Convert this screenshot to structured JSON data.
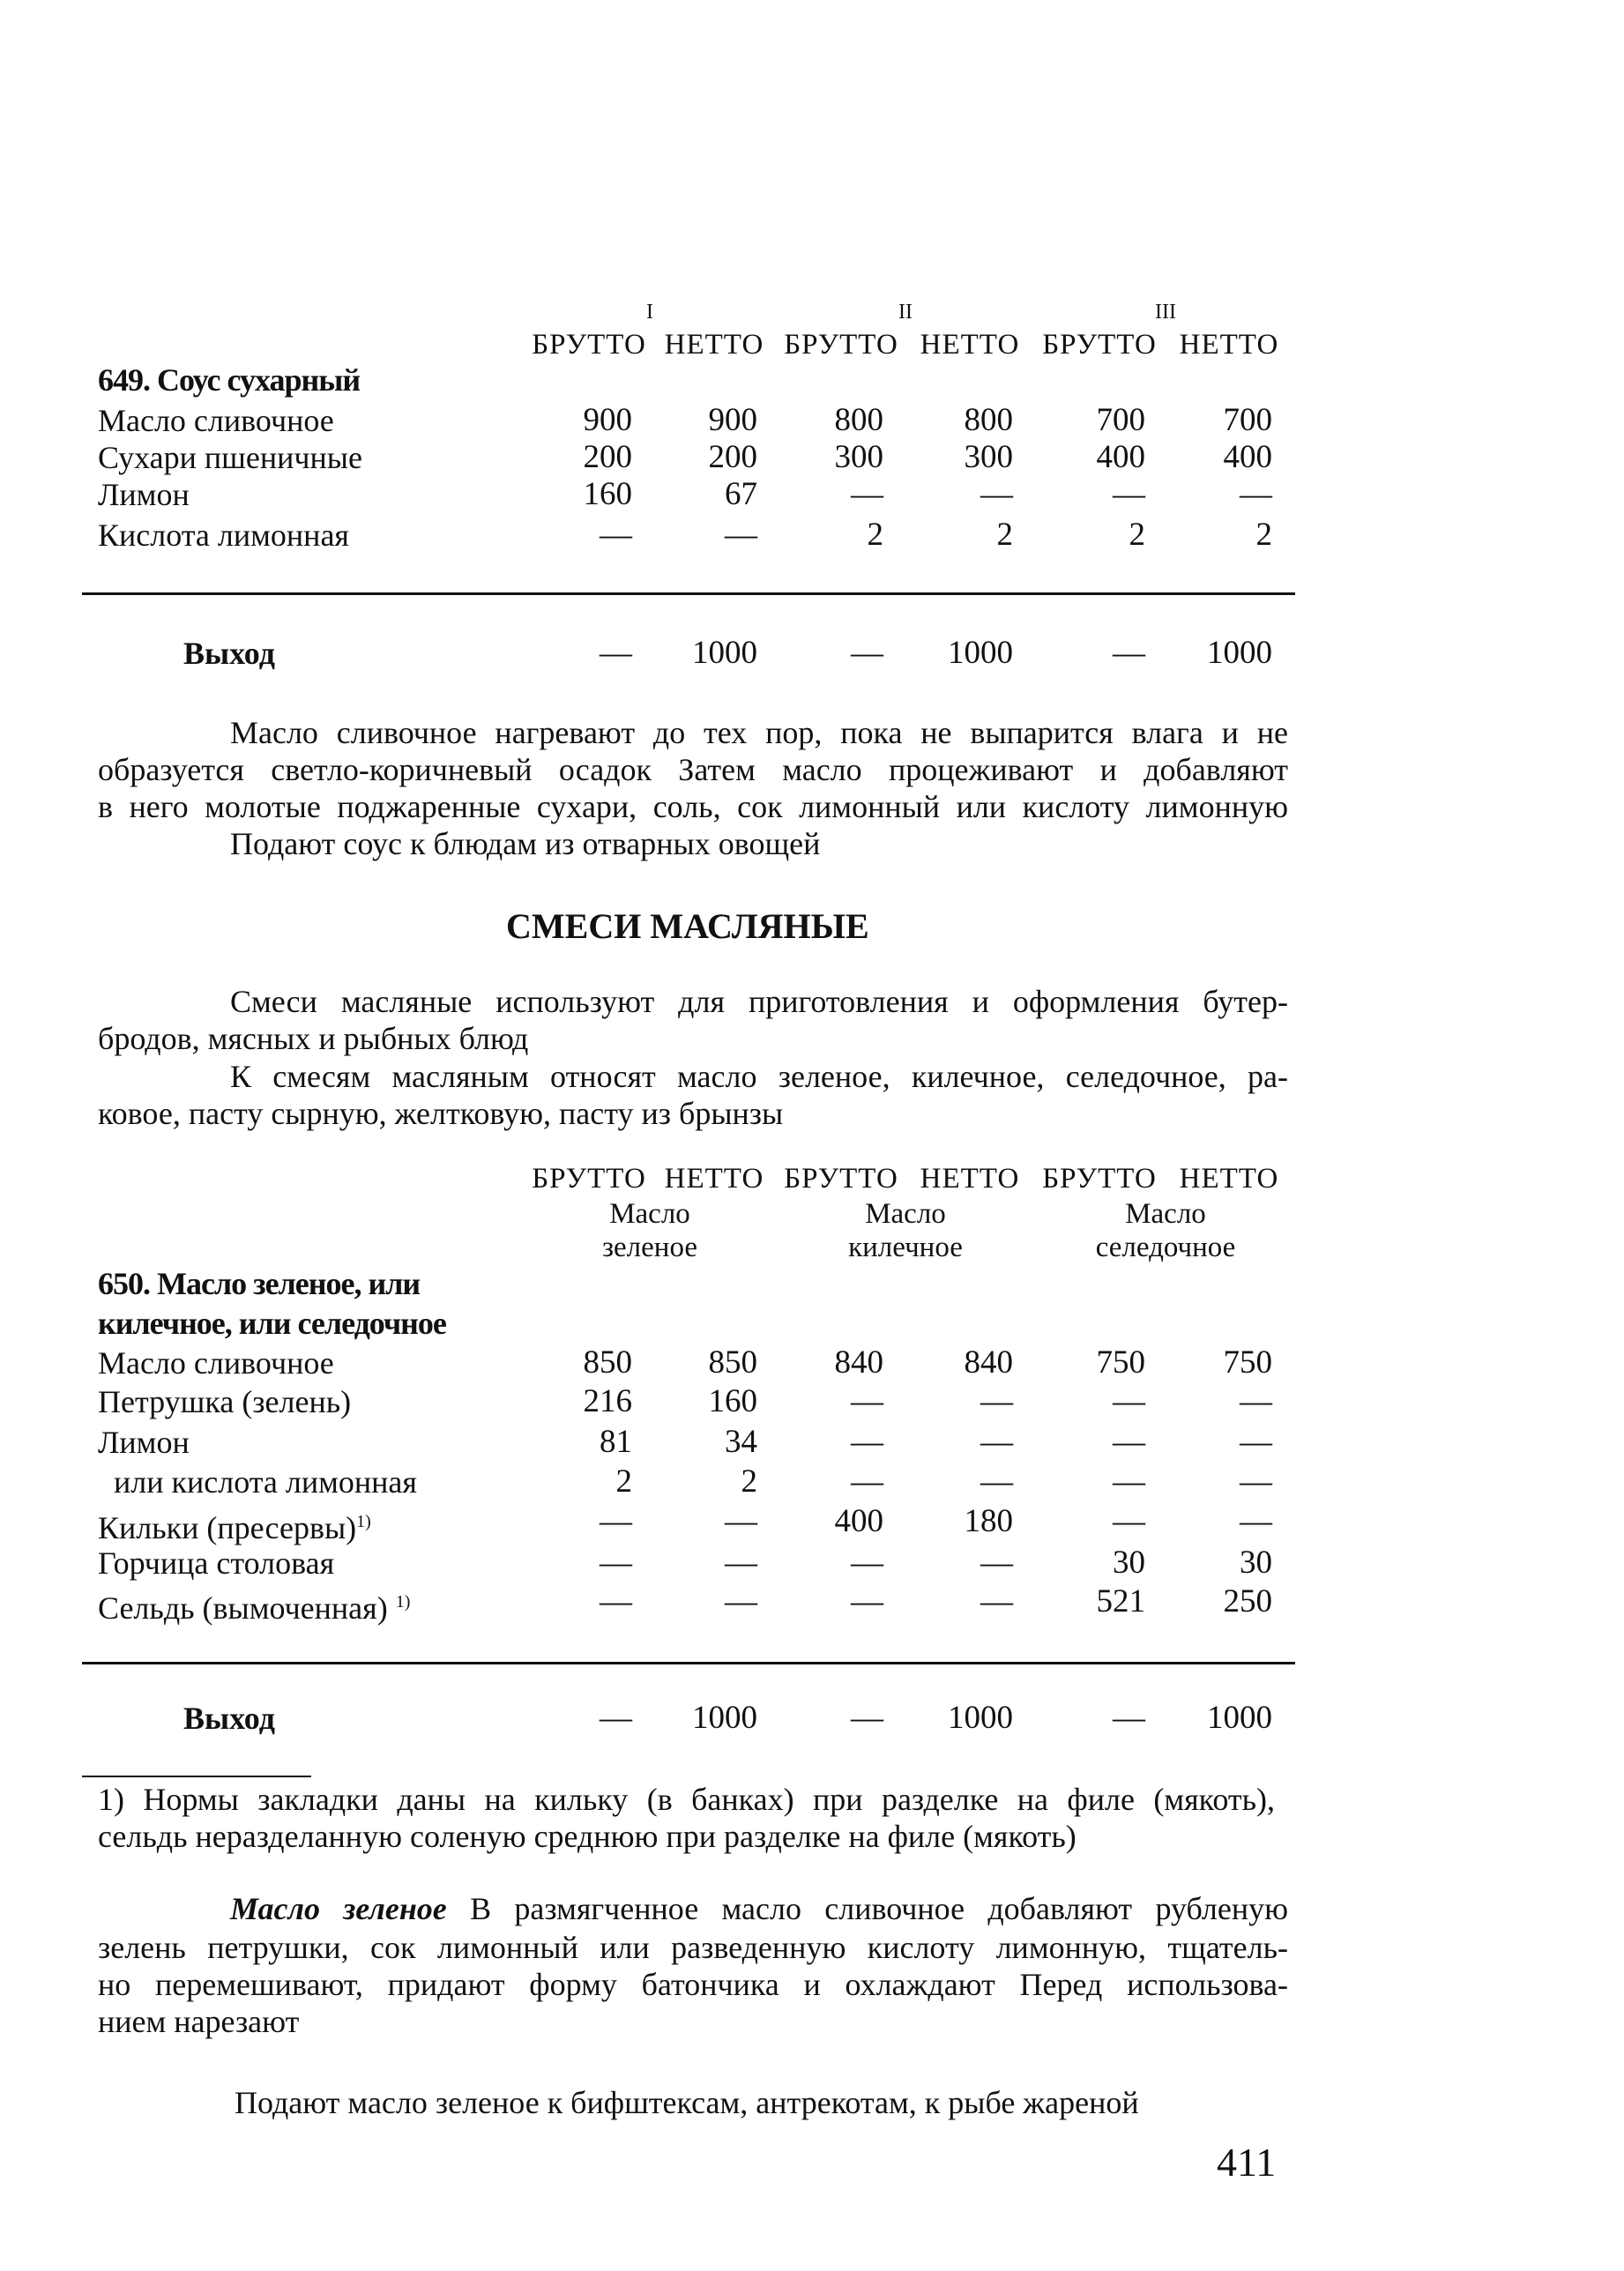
{
  "recipe649": {
    "groups": [
      "I",
      "II",
      "III"
    ],
    "col_headers": [
      "БРУТТО",
      "НЕТТО",
      "БРУТТО",
      "НЕТТО",
      "БРУТТО",
      "НЕТТО"
    ],
    "title": "649. Соус сухарный",
    "rows": [
      {
        "name": "Масло сливочное",
        "values": [
          "900",
          "900",
          "800",
          "800",
          "700",
          "700"
        ]
      },
      {
        "name": "Сухари пшеничные",
        "values": [
          "200",
          "200",
          "300",
          "300",
          "400",
          "400"
        ]
      },
      {
        "name": "Лимон",
        "values": [
          "160",
          "67",
          "—",
          "—",
          "—",
          "—"
        ]
      },
      {
        "name": "Кислота лимонная",
        "values": [
          "—",
          "—",
          "2",
          "2",
          "2",
          "2"
        ]
      }
    ],
    "yield": {
      "label": "Выход",
      "values": [
        "—",
        "1000",
        "—",
        "1000",
        "—",
        "1000"
      ]
    },
    "description": [
      "Масло сливочное нагревают до тех пор, пока не выпарится влага и не",
      "образуется светло-коричневый осадок Затем масло процеживают и добавляют",
      "в него молотые поджаренные сухари, соль, сок лимонный или кислоту лимонную",
      "Подают соус к блюдам из отварных овощей"
    ]
  },
  "section": {
    "heading": "СМЕСИ МАСЛЯНЫЕ",
    "intro": [
      "Смеси масляные используют для приготовления и оформления бутер-",
      "бродов, мясных и рыбных блюд",
      "К смесям масляным относят масло зеленое, килечное, селедочное, ра-",
      "ковое, пасту сырную, желтковую, пасту из брынзы"
    ]
  },
  "recipe650": {
    "col_headers": [
      "БРУТТО",
      "НЕТТО",
      "БРУТТО",
      "НЕТТО",
      "БРУТТО",
      "НЕТТО"
    ],
    "groups": [
      [
        "Масло",
        "зеленое"
      ],
      [
        "Масло",
        "килечное"
      ],
      [
        "Масло",
        "селедочное"
      ]
    ],
    "title": [
      "650. Масло зеленое, или",
      "килечное, или селедочное"
    ],
    "rows": [
      {
        "name": "Масло сливочное",
        "values": [
          "850",
          "850",
          "840",
          "840",
          "750",
          "750"
        ]
      },
      {
        "name": "Петрушка (зелень)",
        "values": [
          "216",
          "160",
          "—",
          "—",
          "—",
          "—"
        ]
      },
      {
        "name": "Лимон",
        "values": [
          "81",
          "34",
          "—",
          "—",
          "—",
          "—"
        ]
      },
      {
        "name": "  или кислота лимонная",
        "values": [
          "2",
          "2",
          "—",
          "—",
          "—",
          "—"
        ]
      },
      {
        "name": "Кильки (пресервы)",
        "note": "1)",
        "values": [
          "—",
          "—",
          "400",
          "180",
          "—",
          "—"
        ]
      },
      {
        "name": "Горчица столовая",
        "values": [
          "—",
          "—",
          "—",
          "—",
          "30",
          "30"
        ]
      },
      {
        "name": "Сельдь (вымоченная) ",
        "note": "1)",
        "values": [
          "—",
          "—",
          "—",
          "—",
          "521",
          "250"
        ]
      }
    ],
    "yield": {
      "label": "Выход",
      "values": [
        "—",
        "1000",
        "—",
        "1000",
        "—",
        "1000"
      ]
    },
    "footnote": [
      "1) Нормы закладки даны на кильку (в банках) при разделке на филе (мякоть),",
      "сельдь неразделанную соленую среднюю при разделке на филе (мякоть)"
    ],
    "green_butter": {
      "term": "Масло зеленое",
      "lines": [
        "В размягченное масло сливочное добавляют рубленую",
        "зелень петрушки, сок лимонный или разведенную кислоту лимонную, тщатель-",
        "но перемешивают, придают форму батончика и охлаждают  Перед использова-",
        "нием нарезают",
        "Подают масло зеленое к бифштексам, антрекотам, к рыбе жареной"
      ]
    }
  },
  "page_number": "411"
}
